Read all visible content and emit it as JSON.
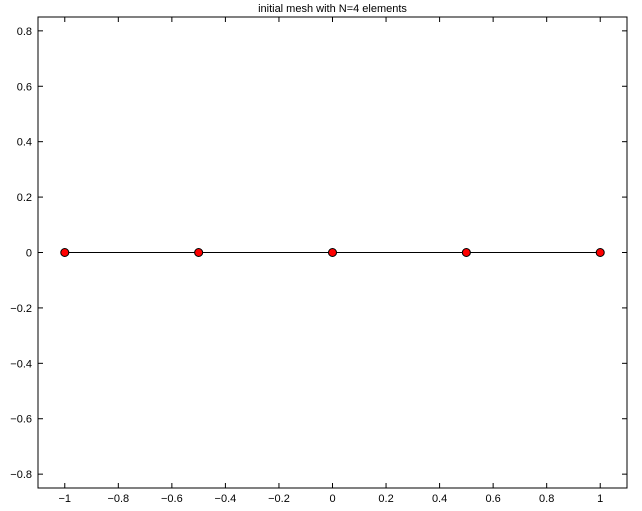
{
  "chart_data": {
    "type": "line",
    "title": "initial mesh with N=4 elements",
    "xlabel": "",
    "ylabel": "",
    "xlim": [
      -1.1,
      1.1
    ],
    "ylim": [
      -0.85,
      0.85
    ],
    "xticks": [
      -1,
      -0.8,
      -0.6,
      -0.4,
      -0.2,
      0,
      0.2,
      0.4,
      0.6,
      0.8,
      1
    ],
    "xtick_labels": [
      "−1",
      "−0.8",
      "−0.6",
      "−0.4",
      "−0.2",
      "0",
      "0.2",
      "0.4",
      "0.6",
      "0.8",
      "1"
    ],
    "yticks": [
      -0.8,
      -0.6,
      -0.4,
      -0.2,
      0,
      0.2,
      0.4,
      0.6,
      0.8
    ],
    "ytick_labels": [
      "−0.8",
      "−0.6",
      "−0.4",
      "−0.2",
      "0",
      "0.2",
      "0.4",
      "0.6",
      "0.8"
    ],
    "grid": false,
    "series": [
      {
        "x": [
          -1,
          -0.5,
          0,
          0.5,
          1
        ],
        "y": [
          0,
          0,
          0,
          0,
          0
        ],
        "line_color": "#000000",
        "marker": "circle",
        "marker_fill": "#ff0000",
        "marker_edge": "#000000"
      }
    ]
  }
}
